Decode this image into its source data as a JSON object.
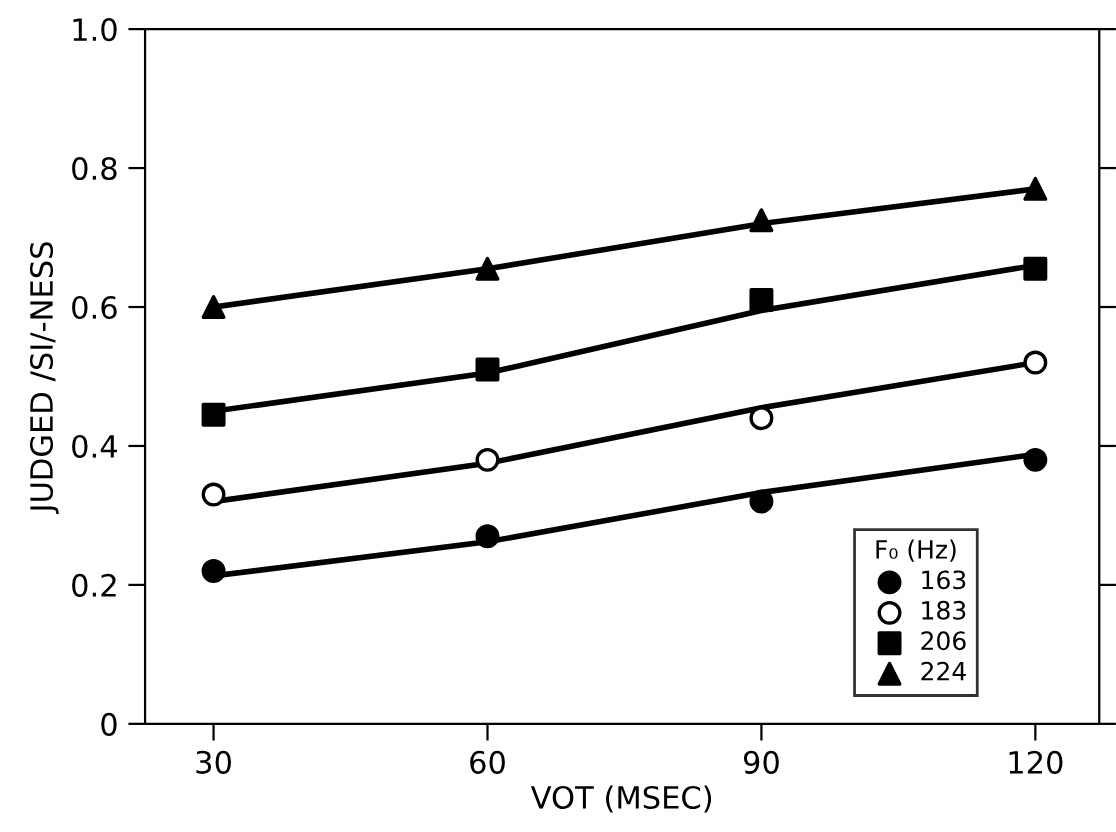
{
  "chart_data": {
    "type": "scatter",
    "xlabel": "VOT (MSEC)",
    "ylabel": "JUDGED /SI/-NESS",
    "legend_title": "F₀ (Hz)",
    "x": [
      30,
      60,
      90,
      120
    ],
    "series": [
      {
        "name": "163",
        "color": "#000000",
        "marker": "circle",
        "values": [
          0.22,
          0.27,
          0.32,
          0.38
        ]
      },
      {
        "name": "183",
        "color": "#ffffff",
        "marker": "circle",
        "values": [
          0.33,
          0.38,
          0.44,
          0.52
        ]
      },
      {
        "name": "206",
        "color": "#000000",
        "marker": "square",
        "values": [
          0.445,
          0.51,
          0.61,
          0.655
        ]
      },
      {
        "name": "224",
        "color": "#000000",
        "marker": "triangle",
        "values": [
          0.6,
          0.655,
          0.725,
          0.77
        ]
      },
      {
        "type": "line",
        "color": "#000000",
        "x": [
          30,
          60,
          90,
          120
        ],
        "values": [
          0.213,
          0.262,
          0.333,
          0.388
        ]
      },
      {
        "type": "line",
        "color": "#000000",
        "x": [
          30,
          60,
          90,
          120
        ],
        "values": [
          0.32,
          0.375,
          0.455,
          0.52
        ]
      },
      {
        "type": "line",
        "color": "#000000",
        "x": [
          30,
          60,
          90,
          120
        ],
        "values": [
          0.45,
          0.505,
          0.595,
          0.66
        ]
      },
      {
        "type": "line",
        "color": "#000000",
        "x": [
          30,
          60,
          90,
          120
        ],
        "values": [
          0.6,
          0.655,
          0.72,
          0.77
        ]
      }
    ],
    "xlim": [
      22.5,
      127
    ],
    "ylim": [
      0,
      1.0
    ],
    "xticks": [
      30,
      60,
      90,
      120
    ],
    "yticks": [
      {
        "value": 0,
        "label": "0"
      },
      {
        "value": 0.2,
        "label": "0.2"
      },
      {
        "value": 0.4,
        "label": "0.4"
      },
      {
        "value": 0.6,
        "label": "0.6"
      },
      {
        "value": 0.8,
        "label": "0.8"
      },
      {
        "value": 1.0,
        "label": "1.0"
      }
    ],
    "grid": false,
    "legend": "bottom right"
  }
}
